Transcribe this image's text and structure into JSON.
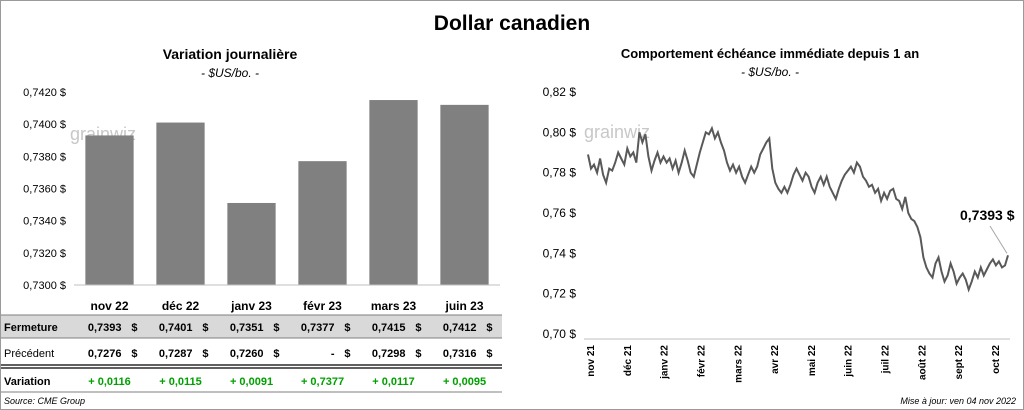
{
  "title": "Dollar canadien",
  "left_chart": {
    "title": "Variation  journalière",
    "subtitle": "- $US/bo. -",
    "watermark": "grainwiz",
    "bar_color": "#808080"
  },
  "right_chart": {
    "title": "Comportement échéance immédiate depuis 1 an",
    "subtitle": "- $US/bo. -",
    "watermark": "grainwiz",
    "last_label": "0,7393 $",
    "line_color": "#595959"
  },
  "table": {
    "rows": [
      {
        "label": "Fermeture",
        "values": [
          "0,7393",
          "0,7401",
          "0,7351",
          "0,7377",
          "0,7415",
          "0,7412"
        ],
        "unit": "$"
      },
      {
        "label": "Précédent",
        "values": [
          "0,7276",
          "0,7287",
          "0,7260",
          "-",
          "0,7298",
          "0,7316"
        ],
        "unit": "$"
      },
      {
        "label": "Variation",
        "values": [
          "+ 0,0116",
          "+ 0,0115",
          "+ 0,0091",
          "+ 0,7377",
          "+ 0,0117",
          "+ 0,0095"
        ]
      }
    ],
    "positive_color": "#00a000",
    "shade_color": "#d9d9d9"
  },
  "source": "Source: CME Group",
  "updated": "Mise à jour: ven 04 nov 2022",
  "chart_data": [
    {
      "type": "bar",
      "title": "Variation  journalière",
      "subtitle": "- $US/bo. -",
      "categories": [
        "nov 22",
        "déc 22",
        "janv 23",
        "févr 23",
        "mars 23",
        "juin 23"
      ],
      "values": [
        0.7393,
        0.7401,
        0.7351,
        0.7377,
        0.7415,
        0.7412
      ],
      "ylim": [
        0.73,
        0.742
      ],
      "yticks": [
        "0,7300 $",
        "0,7320 $",
        "0,7340 $",
        "0,7360 $",
        "0,7380 $",
        "0,7400 $",
        "0,7420 $"
      ],
      "grid": false
    },
    {
      "type": "line",
      "title": "Comportement échéance immédiate depuis 1 an",
      "subtitle": "- $US/bo. -",
      "x_ticks": [
        "nov 21",
        "déc 21",
        "janv 22",
        "févr 22",
        "mars 22",
        "avr 22",
        "mai 22",
        "juin 22",
        "juil 22",
        "août 22",
        "sept 22",
        "oct 22"
      ],
      "yticks": [
        "0,70 $",
        "0,72 $",
        "0,74 $",
        "0,76 $",
        "0,78 $",
        "0,80 $",
        "0,82 $"
      ],
      "ylim": [
        0.7,
        0.82
      ],
      "grid": false,
      "series": [
        {
          "values": [
            0.789,
            0.782,
            0.784,
            0.78,
            0.787,
            0.779,
            0.775,
            0.782,
            0.781,
            0.785,
            0.79,
            0.787,
            0.784,
            0.792,
            0.788,
            0.79,
            0.785,
            0.8,
            0.795,
            0.799,
            0.788,
            0.781,
            0.786,
            0.79,
            0.785,
            0.788,
            0.785,
            0.787,
            0.782,
            0.786,
            0.78,
            0.785,
            0.791,
            0.786,
            0.78,
            0.778,
            0.784,
            0.79,
            0.795,
            0.8,
            0.799,
            0.802,
            0.797,
            0.8,
            0.795,
            0.791,
            0.785,
            0.781,
            0.784,
            0.78,
            0.783,
            0.778,
            0.775,
            0.779,
            0.783,
            0.78,
            0.783,
            0.789,
            0.792,
            0.795,
            0.797,
            0.782,
            0.775,
            0.772,
            0.77,
            0.773,
            0.77,
            0.774,
            0.779,
            0.782,
            0.779,
            0.776,
            0.78,
            0.778,
            0.773,
            0.77,
            0.775,
            0.778,
            0.774,
            0.778,
            0.773,
            0.77,
            0.767,
            0.772,
            0.776,
            0.779,
            0.781,
            0.783,
            0.78,
            0.785,
            0.783,
            0.778,
            0.776,
            0.773,
            0.774,
            0.77,
            0.772,
            0.766,
            0.77,
            0.767,
            0.771,
            0.772,
            0.767,
            0.766,
            0.762,
            0.768,
            0.76,
            0.757,
            0.756,
            0.753,
            0.748,
            0.738,
            0.733,
            0.73,
            0.728,
            0.735,
            0.738,
            0.731,
            0.726,
            0.729,
            0.735,
            0.731,
            0.725,
            0.728,
            0.73,
            0.727,
            0.722,
            0.726,
            0.731,
            0.728,
            0.733,
            0.729,
            0.732,
            0.735,
            0.737,
            0.734,
            0.736,
            0.733,
            0.734,
            0.739
          ]
        }
      ],
      "last_value_label": "0,7393 $"
    }
  ]
}
